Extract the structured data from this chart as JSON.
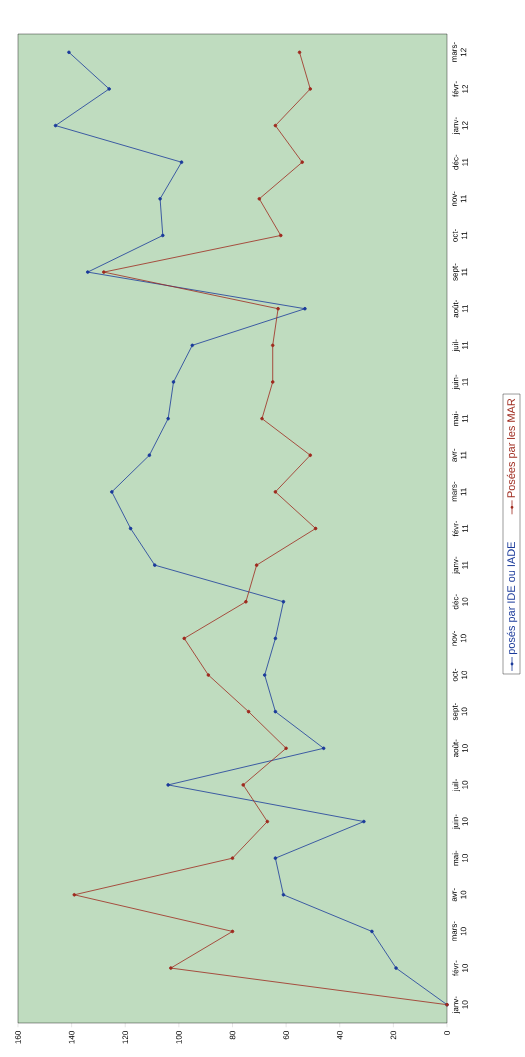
{
  "chart_data": {
    "type": "line",
    "categories": [
      "mars-12",
      "févr-12",
      "janv-12",
      "déc-11",
      "nov-11",
      "oct-11",
      "sept-11",
      "août-11",
      "juil-11",
      "juin-11",
      "mai-11",
      "avr-11",
      "mars-11",
      "févr-11",
      "janv-11",
      "déc-10",
      "nov-10",
      "oct-10",
      "sept-10",
      "août-10",
      "juil-10",
      "juin-10",
      "mai-10",
      "avr-10",
      "mars-10",
      "févr-10",
      "janv-10"
    ],
    "series": [
      {
        "name": "posés par IDE ou IADE",
        "color": "#1a3a9a",
        "values": [
          141,
          126,
          146,
          99,
          107,
          106,
          134,
          53,
          95,
          102,
          104,
          111,
          125,
          118,
          109,
          61,
          64,
          68,
          64,
          46,
          104,
          31,
          64,
          61,
          28,
          19,
          0
        ]
      },
      {
        "name": "Posées par les MAR",
        "color": "#9e2a1e",
        "values": [
          55,
          51,
          64,
          54,
          70,
          62,
          128,
          63,
          65,
          65,
          69,
          51,
          64,
          49,
          71,
          75,
          98,
          89,
          74,
          60,
          76,
          67,
          80,
          139,
          80,
          103,
          0
        ]
      }
    ],
    "orientation": "horizontal",
    "xlim": [
      160,
      0
    ],
    "xticks": [
      0,
      20,
      40,
      60,
      80,
      100,
      120,
      140,
      160
    ],
    "legend": "right",
    "marker": "circle"
  }
}
